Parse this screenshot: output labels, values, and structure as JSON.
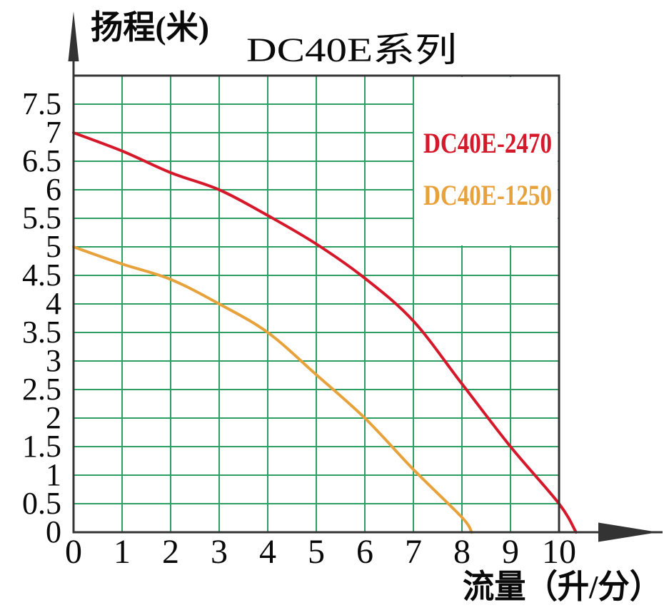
{
  "page": {
    "background": "#ffffff"
  },
  "chart_data": {
    "type": "line",
    "title": "DC40E系列",
    "xlabel": "流量（升/分）",
    "ylabel": "扬程(米)",
    "xlim": [
      0,
      10.6
    ],
    "ylim": [
      0,
      8
    ],
    "x_ticks": [
      "0",
      "1",
      "2",
      "3",
      "4",
      "5",
      "6",
      "7",
      "8",
      "9",
      "10"
    ],
    "y_ticks": [
      "0",
      "0.5",
      "1",
      "1.5",
      "2",
      "2.5",
      "3",
      "3.5",
      "4",
      "4.5",
      "5",
      "5.5",
      "6",
      "6.5",
      "7",
      "7.5"
    ],
    "grid": true,
    "legend_position": "upper-right",
    "colors": {
      "grid": "#2f9e62",
      "axis": "#333333",
      "text": "#0a0a0a",
      "legend_background": "#ffffff"
    },
    "series": [
      {
        "name": "DC40E-2470",
        "color": "#d6182b",
        "points": [
          [
            0,
            7.0
          ],
          [
            1,
            6.68
          ],
          [
            2,
            6.3
          ],
          [
            3,
            6.0
          ],
          [
            4,
            5.55
          ],
          [
            5,
            5.05
          ],
          [
            6,
            4.45
          ],
          [
            7,
            3.7
          ],
          [
            8,
            2.6
          ],
          [
            9,
            1.5
          ],
          [
            10,
            0.5
          ],
          [
            10.35,
            0
          ]
        ]
      },
      {
        "name": "DC40E-1250",
        "color": "#e8a23b",
        "points": [
          [
            0,
            5.0
          ],
          [
            1,
            4.7
          ],
          [
            2,
            4.43
          ],
          [
            3,
            4.0
          ],
          [
            4,
            3.5
          ],
          [
            5,
            2.76
          ],
          [
            6,
            2.0
          ],
          [
            7,
            1.1
          ],
          [
            8,
            0.26
          ],
          [
            8.2,
            0
          ]
        ]
      }
    ]
  }
}
